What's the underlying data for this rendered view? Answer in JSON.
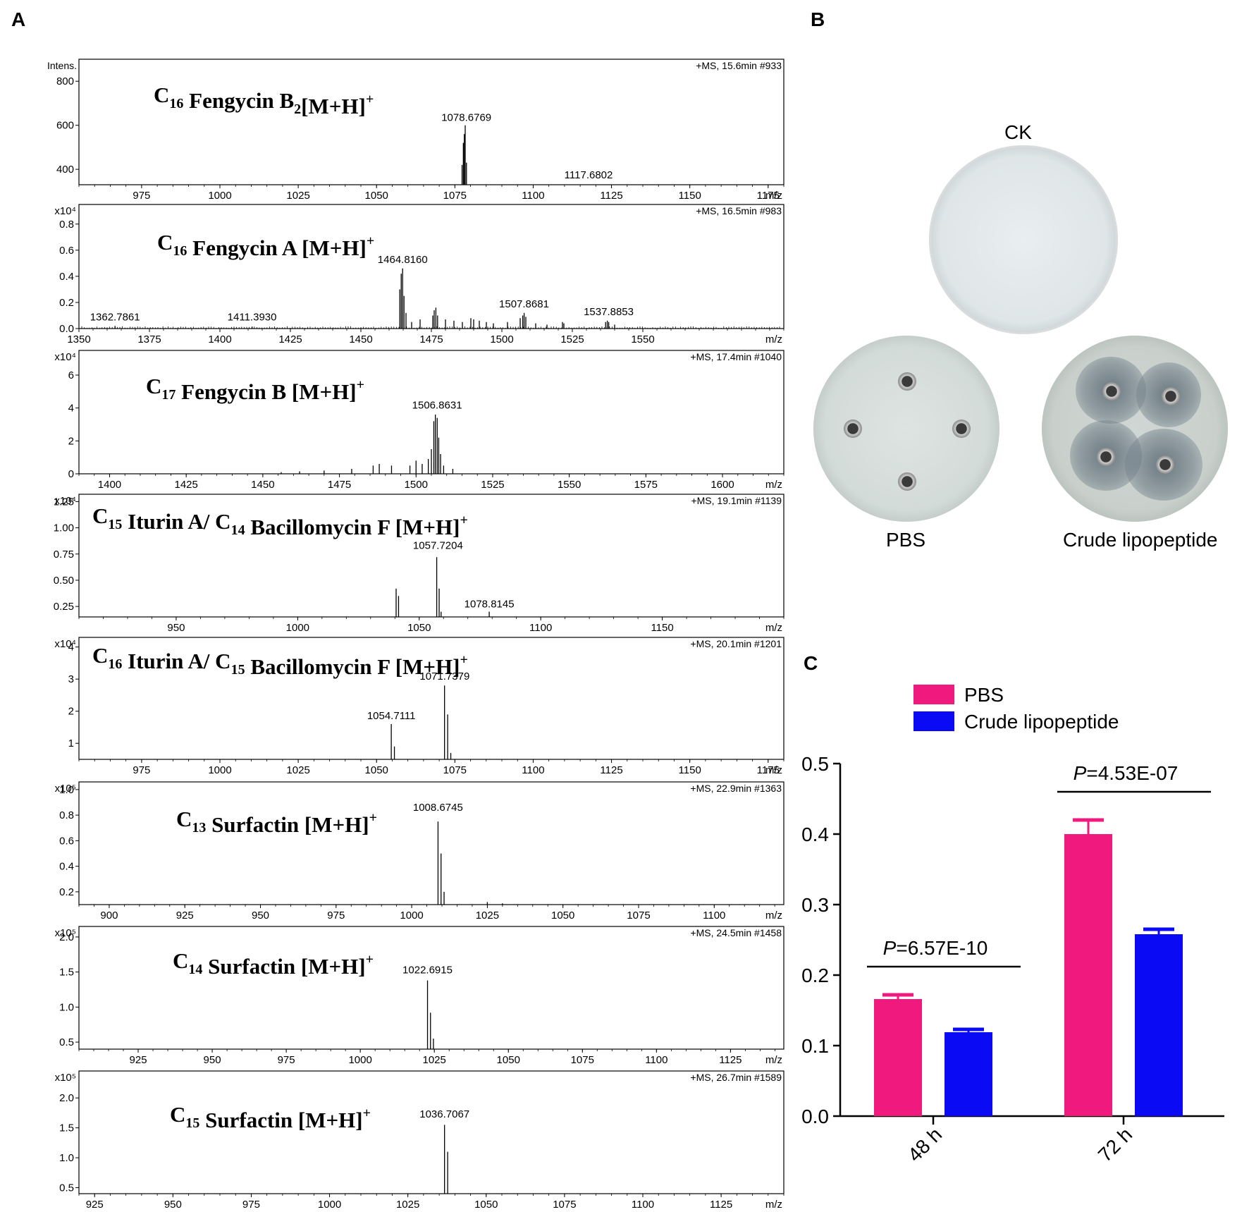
{
  "panels": {
    "a": "A",
    "b": "B",
    "c": "C"
  },
  "ms_common": {
    "x_unit": "m/z",
    "intens_label": "Intens."
  },
  "ms_spectra": [
    {
      "id": "fengycin-b2",
      "scan": "+MS, 15.6min #933",
      "multiplier": "",
      "title": {
        "pre": "C",
        "sub": "16",
        "mid": " Fengycin B",
        "sub2": "2",
        "post": "[M+H]",
        "sup": "+"
      },
      "xlim": [
        955,
        1180
      ],
      "xticks": [
        975,
        1000,
        1025,
        1050,
        1075,
        1100,
        1125,
        1150,
        1175
      ],
      "ylim": [
        330,
        900
      ],
      "yticks": [
        400,
        600,
        800
      ],
      "ytick_labels": [
        "400",
        "600",
        "800"
      ],
      "peaks": [
        [
          1077.3,
          420
        ],
        [
          1077.7,
          520
        ],
        [
          1078.0,
          560
        ],
        [
          1078.3,
          600
        ],
        [
          1078.7,
          430
        ]
      ],
      "labels": [
        {
          "x": 1078.6769,
          "y": 600,
          "text": "1078.6769"
        },
        {
          "x": 1117.6802,
          "y": 340,
          "text": "1117.6802"
        }
      ]
    },
    {
      "id": "fengycin-a",
      "scan": "+MS, 16.5min #983",
      "multiplier": "x10⁴",
      "title": {
        "pre": "C",
        "sub": "16",
        "mid": " Fengycin A ",
        "sub2": "",
        "post": "[M+H]",
        "sup": "+"
      },
      "xlim": [
        1350,
        1600
      ],
      "xticks": [
        1350,
        1375,
        1400,
        1425,
        1450,
        1475,
        1500,
        1525,
        1550
      ],
      "ylim": [
        0,
        0.95
      ],
      "yticks": [
        0,
        0.2,
        0.4,
        0.6,
        0.8
      ],
      "ytick_labels": [
        "0.0",
        "0.2",
        "0.4",
        "0.6",
        "0.8"
      ],
      "peaks": [
        [
          1362.8,
          0.02
        ],
        [
          1411.4,
          0.015
        ],
        [
          1463.8,
          0.3
        ],
        [
          1464.3,
          0.42
        ],
        [
          1464.8,
          0.46
        ],
        [
          1465.3,
          0.25
        ],
        [
          1466.0,
          0.12
        ],
        [
          1468.0,
          0.05
        ],
        [
          1471.0,
          0.07
        ],
        [
          1475.5,
          0.1
        ],
        [
          1476.0,
          0.14
        ],
        [
          1476.6,
          0.16
        ],
        [
          1477.2,
          0.1
        ],
        [
          1480.0,
          0.07
        ],
        [
          1483.0,
          0.06
        ],
        [
          1486.0,
          0.05
        ],
        [
          1489.0,
          0.08
        ],
        [
          1490.0,
          0.07
        ],
        [
          1492.0,
          0.06
        ],
        [
          1494.5,
          0.05
        ],
        [
          1497.0,
          0.04
        ],
        [
          1502.0,
          0.05
        ],
        [
          1506.5,
          0.08
        ],
        [
          1507.4,
          0.1
        ],
        [
          1507.9,
          0.12
        ],
        [
          1508.5,
          0.09
        ],
        [
          1512.0,
          0.04
        ],
        [
          1516.0,
          0.03
        ],
        [
          1521.5,
          0.05
        ],
        [
          1522.0,
          0.04
        ],
        [
          1536.8,
          0.05
        ],
        [
          1537.4,
          0.06
        ],
        [
          1537.9,
          0.05
        ],
        [
          1540.0,
          0.03
        ]
      ],
      "labels": [
        {
          "x": 1362.7861,
          "y": 0.03,
          "text": "1362.7861"
        },
        {
          "x": 1411.393,
          "y": 0.03,
          "text": "1411.3930"
        },
        {
          "x": 1464.816,
          "y": 0.47,
          "text": "1464.8160"
        },
        {
          "x": 1507.8681,
          "y": 0.13,
          "text": "1507.8681"
        },
        {
          "x": 1537.8853,
          "y": 0.07,
          "text": "1537.8853"
        }
      ]
    },
    {
      "id": "fengycin-b",
      "scan": "+MS, 17.4min #1040",
      "multiplier": "x10⁴",
      "title": {
        "pre": "C",
        "sub": "17",
        "mid": " Fengycin B ",
        "sub2": "",
        "post": "[M+H]",
        "sup": "+"
      },
      "xlim": [
        1390,
        1620
      ],
      "xticks": [
        1400,
        1425,
        1450,
        1475,
        1500,
        1525,
        1550,
        1575,
        1600
      ],
      "ylim": [
        0,
        7.5
      ],
      "yticks": [
        0,
        2,
        4,
        6
      ],
      "ytick_labels": [
        "0",
        "2",
        "4",
        "6"
      ],
      "peaks": [
        [
          1456.0,
          0.1
        ],
        [
          1462.0,
          0.15
        ],
        [
          1470.0,
          0.2
        ],
        [
          1479.0,
          0.3
        ],
        [
          1486.0,
          0.5
        ],
        [
          1488.0,
          0.6
        ],
        [
          1492.0,
          0.5
        ],
        [
          1498.0,
          0.5
        ],
        [
          1500.0,
          0.8
        ],
        [
          1502.0,
          0.6
        ],
        [
          1504.0,
          0.9
        ],
        [
          1505.0,
          1.5
        ],
        [
          1505.8,
          3.2
        ],
        [
          1506.3,
          3.6
        ],
        [
          1506.9,
          3.4
        ],
        [
          1507.4,
          2.2
        ],
        [
          1508.0,
          1.2
        ],
        [
          1509.0,
          0.5
        ],
        [
          1512.0,
          0.3
        ]
      ],
      "labels": [
        {
          "x": 1506.8631,
          "y": 3.7,
          "text": "1506.8631"
        }
      ]
    },
    {
      "id": "iturin-c15",
      "scan": "+MS, 19.1min #1139",
      "multiplier": "x10⁴",
      "title": {
        "pre": "C",
        "sub": "15",
        "mid": " Iturin A/ C",
        "sub2": "14",
        "post": " Bacillomycin F [M+H]",
        "sup": "+"
      },
      "xlim": [
        910,
        1200
      ],
      "xticks": [
        950,
        1000,
        1050,
        1100,
        1150
      ],
      "ylim": [
        0.15,
        1.32
      ],
      "yticks": [
        0.25,
        0.5,
        0.75,
        1.0,
        1.25
      ],
      "ytick_labels": [
        "0.25",
        "0.50",
        "0.75",
        "1.00",
        "1.25"
      ],
      "peaks": [
        [
          1040.5,
          0.42
        ],
        [
          1041.5,
          0.35
        ],
        [
          1057.2,
          0.72
        ],
        [
          1058.2,
          0.42
        ],
        [
          1059.0,
          0.2
        ],
        [
          1078.8,
          0.2
        ]
      ],
      "labels": [
        {
          "x": 1057.7204,
          "y": 0.76,
          "text": "1057.7204"
        },
        {
          "x": 1078.8145,
          "y": 0.2,
          "text": "1078.8145"
        }
      ]
    },
    {
      "id": "iturin-c16",
      "scan": "+MS, 20.1min #1201",
      "multiplier": "x10⁴",
      "title": {
        "pre": "C",
        "sub": "16",
        "mid": " Iturin A/ C",
        "sub2": "15",
        "post": " Bacillomycin F [M+H]",
        "sup": "+"
      },
      "xlim": [
        955,
        1180
      ],
      "xticks": [
        975,
        1000,
        1025,
        1050,
        1075,
        1100,
        1125,
        1150,
        1175
      ],
      "ylim": [
        0.5,
        4.3
      ],
      "yticks": [
        1,
        2,
        3,
        4
      ],
      "ytick_labels": [
        "1",
        "2",
        "3",
        "4"
      ],
      "peaks": [
        [
          1054.7,
          1.6
        ],
        [
          1055.7,
          0.9
        ],
        [
          1071.7,
          2.8
        ],
        [
          1072.7,
          1.9
        ],
        [
          1073.7,
          0.7
        ]
      ],
      "labels": [
        {
          "x": 1054.7111,
          "y": 1.62,
          "text": "1054.7111"
        },
        {
          "x": 1071.7379,
          "y": 2.85,
          "text": "1071.7379"
        }
      ]
    },
    {
      "id": "surfactin-c13",
      "scan": "+MS, 22.9min #1363",
      "multiplier": "x10⁵",
      "title": {
        "pre": "C",
        "sub": "13",
        "mid": " Surfactin ",
        "sub2": "",
        "post": "[M+H]",
        "sup": "+"
      },
      "xlim": [
        890,
        1123
      ],
      "xticks": [
        900,
        925,
        950,
        975,
        1000,
        1025,
        1050,
        1075,
        1100
      ],
      "ylim": [
        0.1,
        1.06
      ],
      "yticks": [
        0.2,
        0.4,
        0.6,
        0.8,
        1.0
      ],
      "ytick_labels": [
        "0.2",
        "0.4",
        "0.6",
        "0.8",
        "1.0"
      ],
      "peaks": [
        [
          1008.7,
          0.75
        ],
        [
          1009.7,
          0.5
        ],
        [
          1010.7,
          0.2
        ],
        [
          1025.0,
          0.12
        ],
        [
          1030.0,
          0.11
        ]
      ],
      "labels": [
        {
          "x": 1008.6745,
          "y": 0.8,
          "text": "1008.6745"
        }
      ]
    },
    {
      "id": "surfactin-c14",
      "scan": "+MS, 24.5min #1458",
      "multiplier": "x10⁵",
      "title": {
        "pre": "C",
        "sub": "14",
        "mid": " Surfactin ",
        "sub2": "",
        "post": "[M+H]",
        "sup": "+"
      },
      "xlim": [
        905,
        1143
      ],
      "xticks": [
        925,
        950,
        975,
        1000,
        1025,
        1050,
        1075,
        1100,
        1125
      ],
      "ylim": [
        0.4,
        2.15
      ],
      "yticks": [
        0.5,
        1.0,
        1.5,
        2.0
      ],
      "ytick_labels": [
        "0.5",
        "1.0",
        "1.5",
        "2.0"
      ],
      "peaks": [
        [
          1022.7,
          1.38
        ],
        [
          1023.7,
          0.92
        ],
        [
          1024.7,
          0.55
        ]
      ],
      "labels": [
        {
          "x": 1022.6915,
          "y": 1.42,
          "text": "1022.6915"
        }
      ]
    },
    {
      "id": "surfactin-c15",
      "scan": "+MS, 26.7min #1589",
      "multiplier": "x10⁵",
      "title": {
        "pre": "C",
        "sub": "15",
        "mid": " Surfactin ",
        "sub2": "",
        "post": "[M+H]",
        "sup": "+"
      },
      "xlim": [
        920,
        1145
      ],
      "xticks": [
        925,
        950,
        975,
        1000,
        1025,
        1050,
        1075,
        1100,
        1125
      ],
      "ylim": [
        0.4,
        2.45
      ],
      "yticks": [
        0.5,
        1.0,
        1.5,
        2.0
      ],
      "ytick_labels": [
        "0.5",
        "1.0",
        "1.5",
        "2.0"
      ],
      "peaks": [
        [
          1036.7,
          1.55
        ],
        [
          1037.7,
          1.1
        ]
      ],
      "labels": [
        {
          "x": 1036.7067,
          "y": 1.6,
          "text": "1036.7067"
        }
      ]
    }
  ],
  "plates": {
    "ck": "CK",
    "pbs": "PBS",
    "crude": "Crude lipopeptide"
  },
  "chart_data": {
    "type": "bar",
    "categories": [
      "48 h",
      "72 h"
    ],
    "series": [
      {
        "name": "PBS",
        "color": "#f0197d",
        "values": [
          0.166,
          0.4
        ],
        "errors": [
          0.006,
          0.02
        ]
      },
      {
        "name": "Crude lipopeptide",
        "color": "#0a0af5",
        "values": [
          0.119,
          0.258
        ],
        "errors": [
          0.004,
          0.007
        ]
      }
    ],
    "ylim": [
      0,
      0.5
    ],
    "yticks": [
      "0.0",
      "0.1",
      "0.2",
      "0.3",
      "0.4",
      "0.5"
    ],
    "legend_position": "top-left",
    "significance": [
      {
        "category": "48 h",
        "p_prefix": "P",
        "p_value": "=6.57E-10"
      },
      {
        "category": "72 h",
        "p_prefix": "P",
        "p_value": "=4.53E-07"
      }
    ]
  }
}
